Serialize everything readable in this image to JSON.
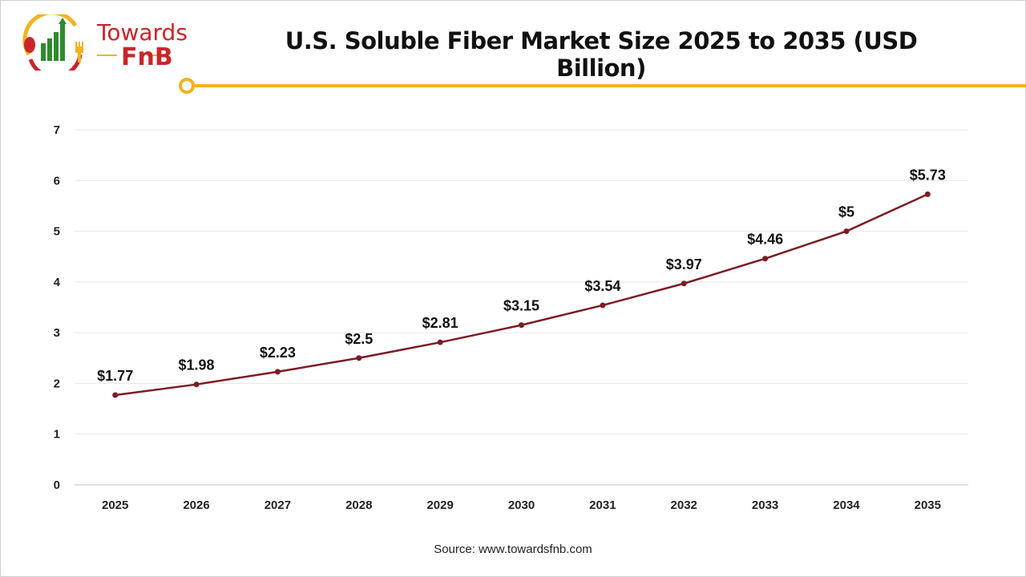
{
  "logo": {
    "line1": "Towards",
    "line2": "FnB"
  },
  "header": {
    "title": "U.S. Soluble Fiber Market Size 2025 to 2035 (USD Billion)"
  },
  "footer": {
    "source": "Source: www.towardsfnb.com"
  },
  "colors": {
    "line": "#7b1c24",
    "accent": "#f2b321",
    "grid": "#e6e6e6"
  },
  "chart_data": {
    "type": "line",
    "title": "U.S. Soluble Fiber Market Size 2025 to 2035 (USD Billion)",
    "xlabel": "",
    "ylabel": "",
    "categories": [
      "2025",
      "2026",
      "2027",
      "2028",
      "2029",
      "2030",
      "2031",
      "2032",
      "2033",
      "2034",
      "2035"
    ],
    "values": [
      1.77,
      1.98,
      2.23,
      2.5,
      2.81,
      3.15,
      3.54,
      3.97,
      4.46,
      5,
      5.73
    ],
    "data_labels": [
      "$1.77",
      "$1.98",
      "$2.23",
      "$2.5",
      "$2.81",
      "$3.15",
      "$3.54",
      "$3.97",
      "$4.46",
      "$5",
      "$5.73"
    ],
    "ylim": [
      0,
      7
    ],
    "yticks": [
      0,
      1,
      2,
      3,
      4,
      5,
      6,
      7
    ],
    "grid": true
  }
}
